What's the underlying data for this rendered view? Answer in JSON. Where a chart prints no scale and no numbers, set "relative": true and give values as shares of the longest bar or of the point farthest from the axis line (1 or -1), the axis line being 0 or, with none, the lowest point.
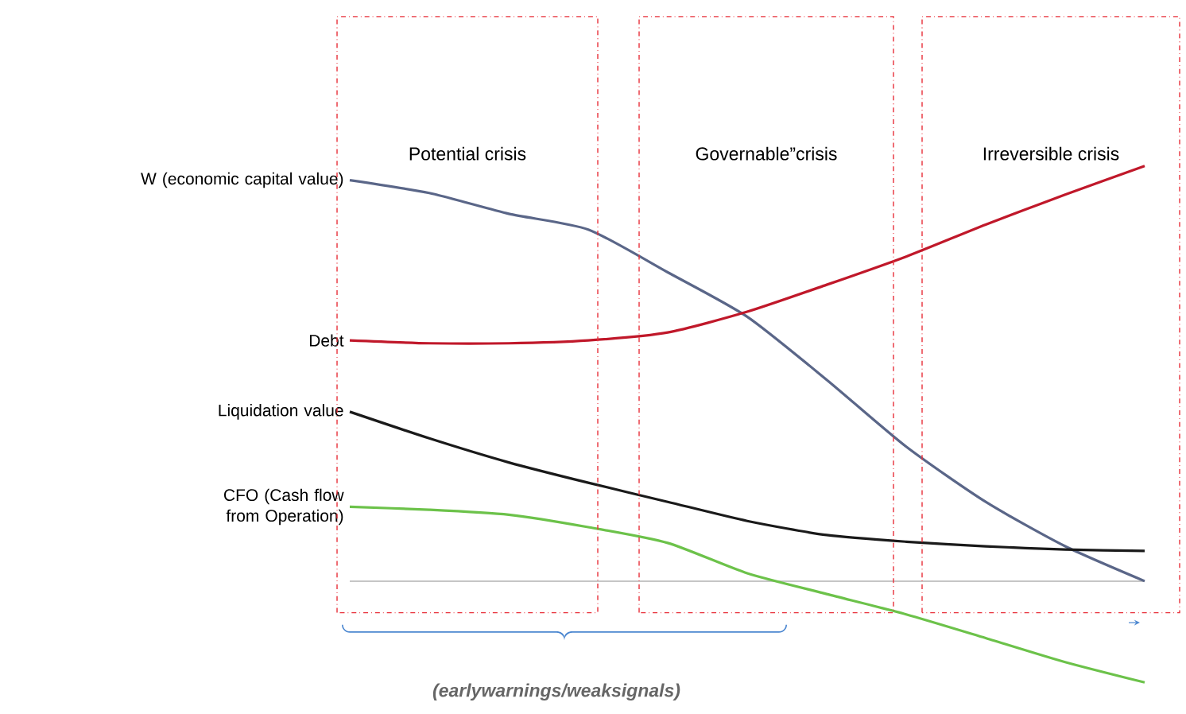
{
  "chart_data": {
    "type": "line",
    "relative": true,
    "marker": "none",
    "line_style": "solid",
    "categories": [
      null,
      null,
      null,
      null,
      null,
      null,
      null,
      null,
      null,
      null,
      null
    ],
    "series": [
      {
        "name": "W (economic capital value)",
        "color": "#5a6688",
        "values": [
          0.966,
          0.935,
          0.885,
          0.847,
          0.744,
          0.637,
          0.485,
          0.324,
          0.191,
          0.084,
          0
        ]
      },
      {
        "name": "Debt",
        "color": "#c0182a",
        "values": [
          0.58,
          0.573,
          0.573,
          0.58,
          0.599,
          0.649,
          0.714,
          0.782,
          0.859,
          0.931,
          1
        ]
      },
      {
        "name": "Liquidation value",
        "color": "#1a1a1a",
        "values": [
          0.408,
          0.344,
          0.286,
          0.237,
          0.191,
          0.145,
          0.111,
          0.095,
          0.084,
          0.076,
          0.073
        ]
      },
      {
        "name": "CFO (Cash flow from Operation)",
        "color": "#6cc24a",
        "values": [
          0.179,
          0.172,
          0.16,
          0.13,
          0.092,
          0.019,
          -0.031,
          -0.08,
          -0.137,
          -0.195,
          -0.244
        ]
      }
    ],
    "annotations": [
      "Potential crisis",
      "Governable”crisis",
      "Irreversible crisis",
      "(earlywarnings/weaksignals)"
    ]
  }
}
